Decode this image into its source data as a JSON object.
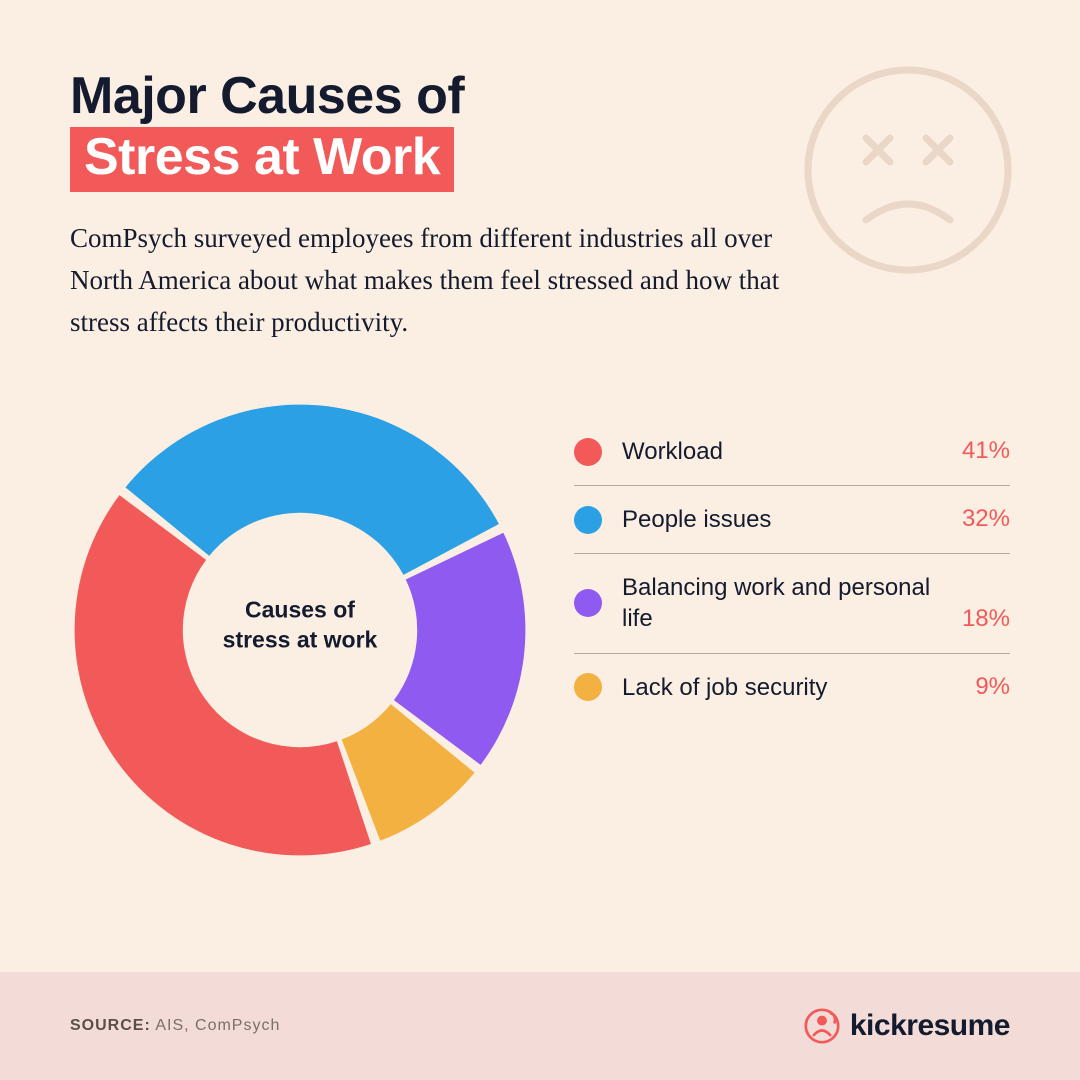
{
  "header": {
    "title_line1": "Major Causes of",
    "title_line2": "Stress at Work",
    "subtitle": "ComPsych surveyed employees from different industries all over North America about what makes them feel stressed and how that stress affects their productivity."
  },
  "decoration": {
    "sad_face_stroke": "#ead7c8",
    "sad_face_stroke_width": 7
  },
  "chart": {
    "type": "donut",
    "center_label_line1": "Causes of",
    "center_label_line2": "stress at work",
    "background_color": "#fbeee2",
    "gap_deg": 2.5,
    "inner_radius_pct": 52,
    "start_angle_deg": -52,
    "segments": [
      {
        "key": "workload",
        "label": "Workload",
        "value": 41,
        "display": "41%",
        "color": "#f15a59"
      },
      {
        "key": "people",
        "label": "People issues",
        "value": 32,
        "display": "32%",
        "color": "#2ca0e5"
      },
      {
        "key": "balance",
        "label": "Balancing work and personal life",
        "value": 18,
        "display": "18%",
        "color": "#8e5af0"
      },
      {
        "key": "security",
        "label": "Lack of job security",
        "value": 9,
        "display": "9%",
        "color": "#f2b141"
      }
    ],
    "legend": {
      "label_color": "#141b2e",
      "value_color": "#f15a59",
      "divider_color": "#b8a99a",
      "dot_size": 28,
      "font_size": 24
    }
  },
  "footer": {
    "source_label": "SOURCE:",
    "source_text": "AIS, ComPsych",
    "brand": "kickresume",
    "brand_color": "#f15a59",
    "background": "#f3dbd7"
  }
}
